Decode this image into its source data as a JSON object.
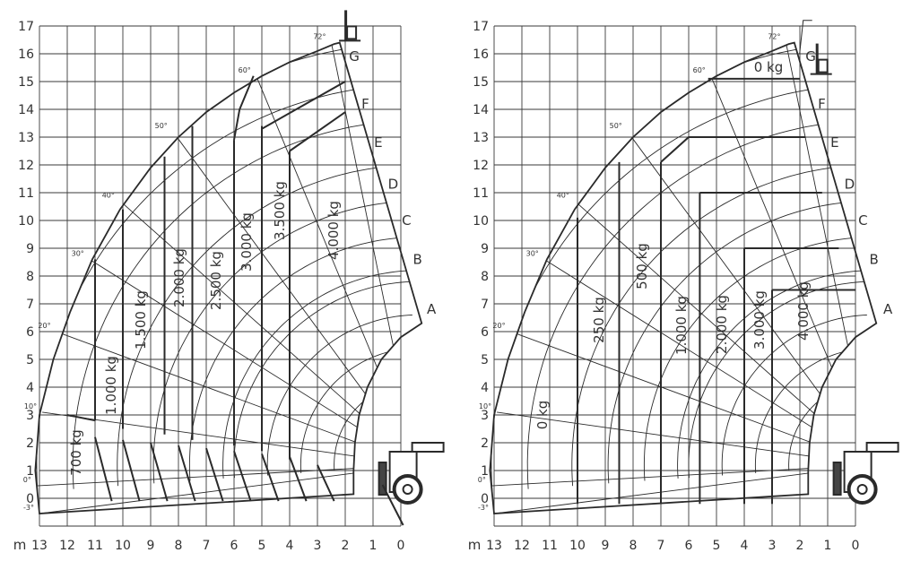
{
  "charts": [
    {
      "unit": "m",
      "y_ticks": [
        "0",
        "1",
        "2",
        "3",
        "4",
        "5",
        "6",
        "7",
        "8",
        "9",
        "10",
        "11",
        "12",
        "13",
        "14",
        "15",
        "16",
        "17"
      ],
      "x_ticks": [
        "13",
        "12",
        "11",
        "10",
        "9",
        "8",
        "7",
        "6",
        "5",
        "4",
        "3",
        "2",
        "1",
        "0"
      ],
      "angles": [
        "-3°",
        "0°",
        "10°",
        "20°",
        "30°",
        "40°",
        "50°",
        "60°",
        "72°"
      ],
      "extension_letters": [
        "A",
        "B",
        "C",
        "D",
        "E",
        "F",
        "G"
      ],
      "loads": [
        "700 kg",
        "1.000 kg",
        "1.500 kg",
        "2.000 kg",
        "2.500 kg",
        "3.000 kg",
        "3.500 kg",
        "4.000 kg"
      ]
    },
    {
      "unit": "m",
      "y_ticks": [
        "0",
        "1",
        "2",
        "3",
        "4",
        "5",
        "6",
        "7",
        "8",
        "9",
        "10",
        "11",
        "12",
        "13",
        "14",
        "15",
        "16",
        "17"
      ],
      "x_ticks": [
        "13",
        "12",
        "11",
        "10",
        "9",
        "8",
        "7",
        "6",
        "5",
        "4",
        "3",
        "2",
        "1",
        "0"
      ],
      "angles": [
        "-3°",
        "0°",
        "10°",
        "20°",
        "30°",
        "40°",
        "50°",
        "60°",
        "72°"
      ],
      "extension_letters": [
        "A",
        "B",
        "C",
        "D",
        "E",
        "F",
        "G"
      ],
      "loads": [
        "0 kg",
        "0 kg",
        "250 kg",
        "500 kg",
        "1.000 kg",
        "2.000 kg",
        "3.000 kg",
        "4.000 kg"
      ]
    }
  ],
  "colors": {
    "line": "#2a2a2a",
    "grid": "#3a3a3a",
    "background": "#ffffff"
  }
}
